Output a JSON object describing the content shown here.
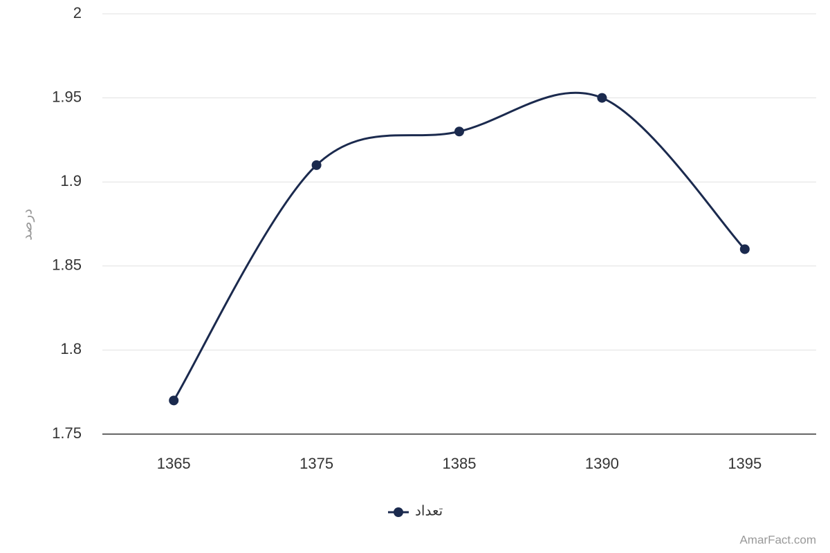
{
  "chart_data": {
    "type": "line",
    "y_label": "درصد",
    "categories": [
      "1365",
      "1375",
      "1385",
      "1390",
      "1395"
    ],
    "series": [
      {
        "name": "تعداد",
        "color": "#1b2a4e",
        "values": [
          1.77,
          1.91,
          1.93,
          1.95,
          1.86
        ]
      }
    ],
    "ylim": [
      1.75,
      2
    ],
    "yticks": [
      1.75,
      1.8,
      1.85,
      1.9,
      1.95,
      2
    ],
    "grid": true,
    "smooth": true,
    "legend": "bottom",
    "credit": "AmarFact.com"
  }
}
